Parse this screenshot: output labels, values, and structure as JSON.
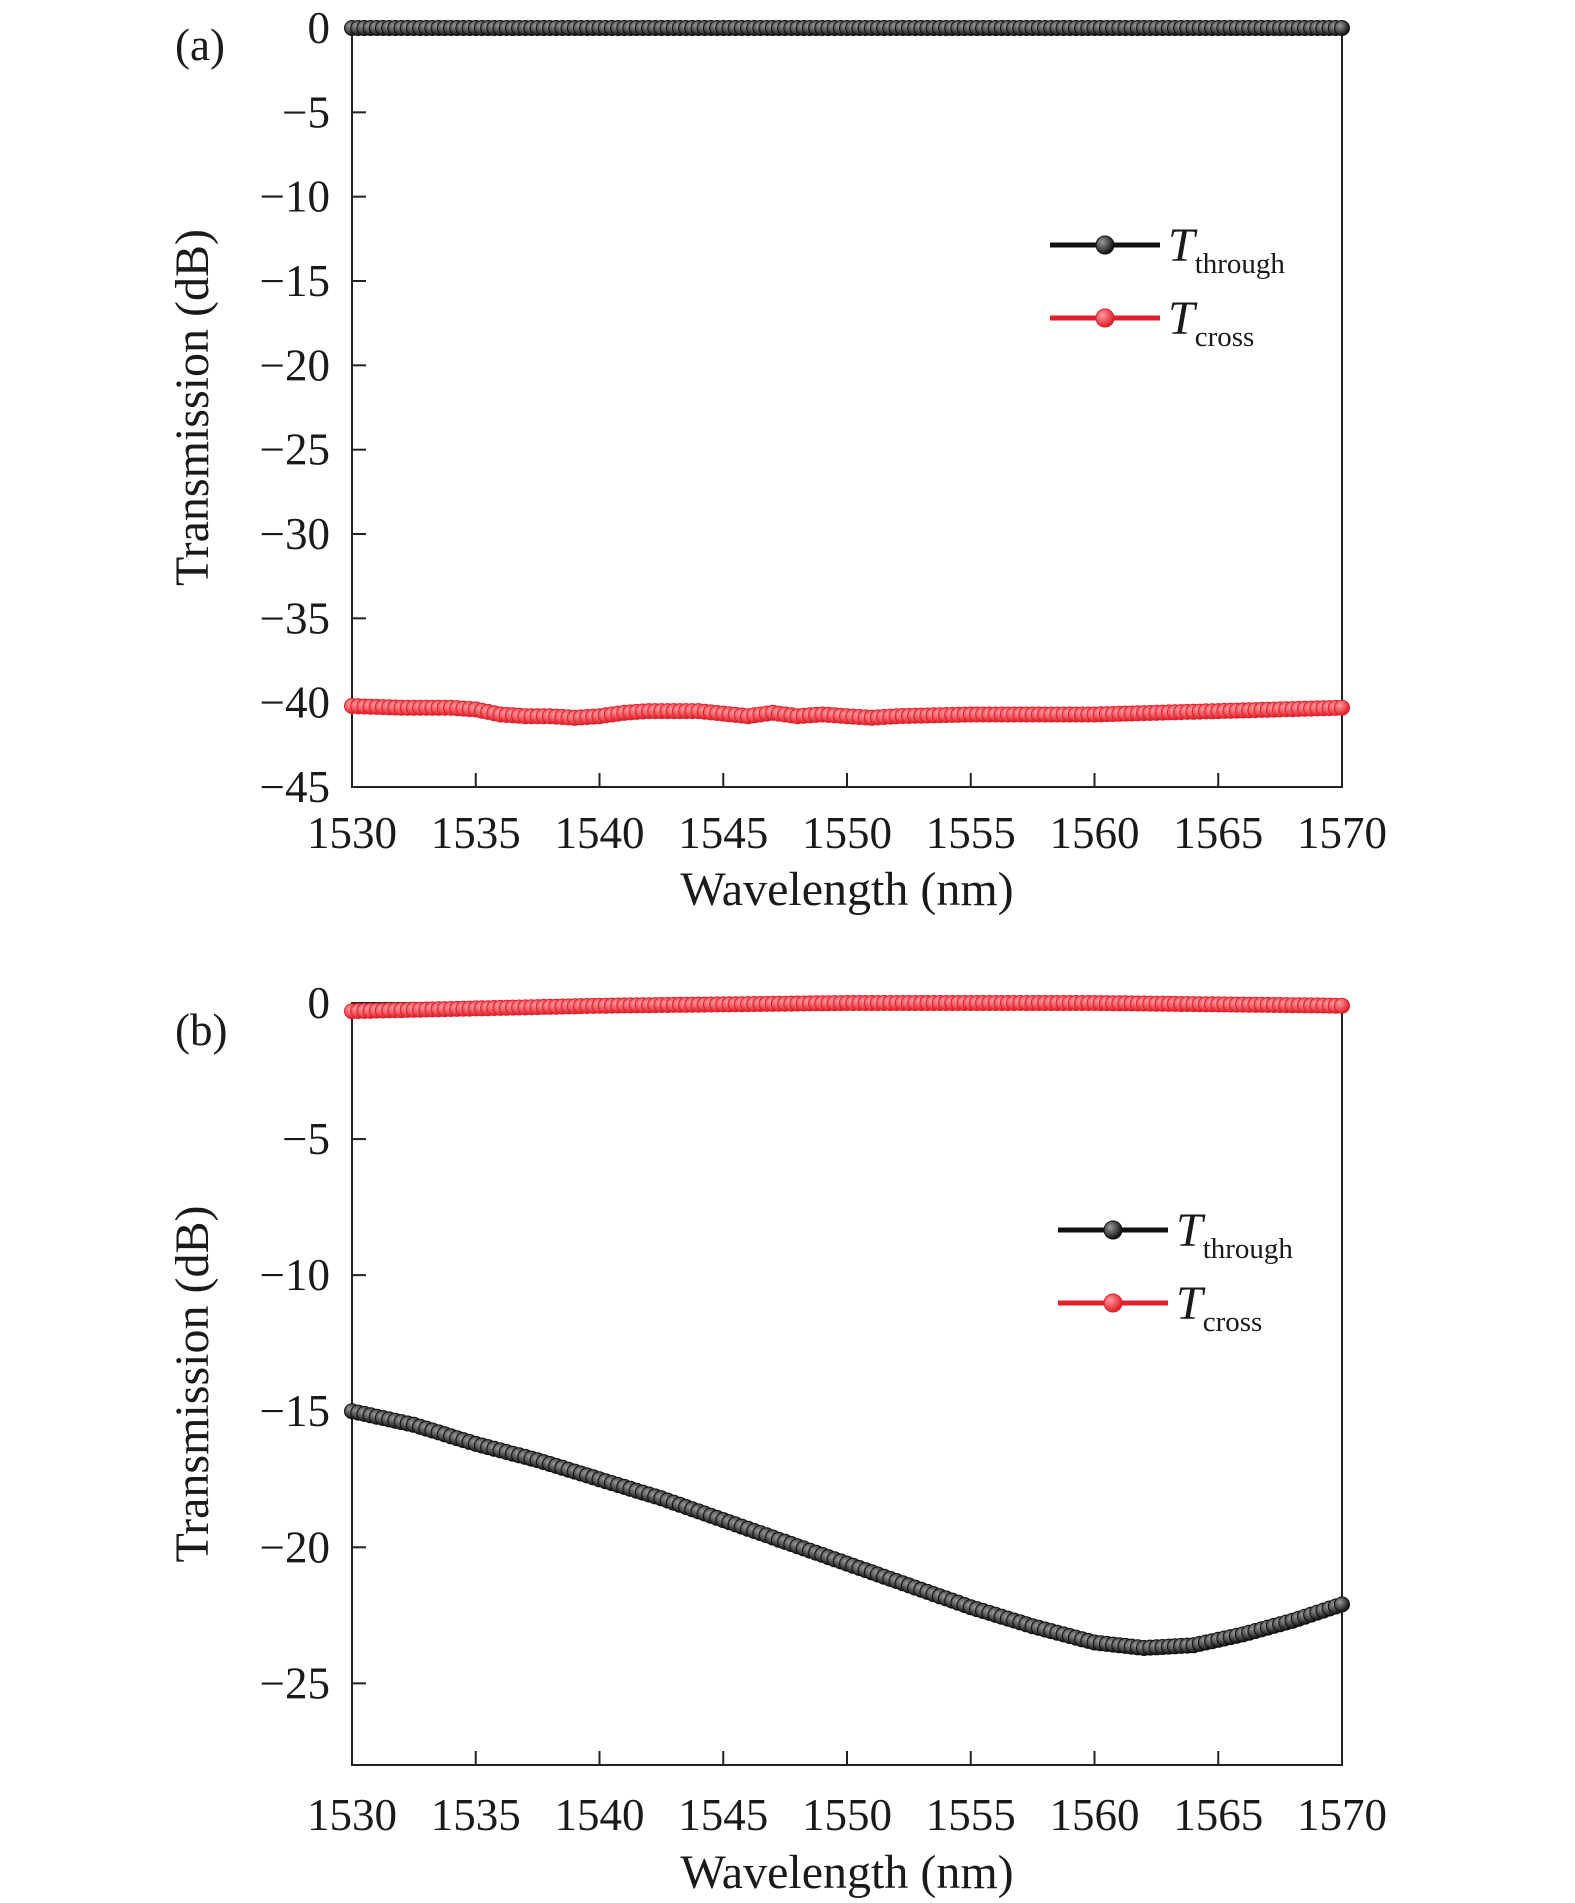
{
  "chart_data": [
    {
      "type": "line",
      "panel_label": "(a)",
      "xlabel": "Wavelength (nm)",
      "ylabel": "Transmission (dB)",
      "xlim": [
        1530,
        1570
      ],
      "ylim": [
        -45,
        0
      ],
      "xticks": [
        1530,
        1535,
        1540,
        1545,
        1550,
        1555,
        1560,
        1565,
        1570
      ],
      "yticks": [
        0,
        -5,
        -10,
        -15,
        -20,
        -25,
        -30,
        -35,
        -40,
        -45
      ],
      "ytick_labels": [
        "0",
        "−5",
        "−10",
        "−15",
        "−20",
        "−25",
        "−30",
        "−35",
        "−40",
        "−45"
      ],
      "legend_position": "upper-right",
      "series": [
        {
          "name": "T_through",
          "name_main": "T",
          "name_sub": "through",
          "color": "#111111",
          "x": [
            1530,
            1535,
            1540,
            1545,
            1550,
            1555,
            1560,
            1565,
            1570
          ],
          "y": [
            0,
            0,
            0,
            0,
            0,
            0,
            0,
            0,
            0
          ]
        },
        {
          "name": "T_cross",
          "name_main": "T",
          "name_sub": "cross",
          "color": "#e0202a",
          "x": [
            1530,
            1532,
            1534,
            1535,
            1536,
            1537,
            1538,
            1539,
            1540,
            1541,
            1542,
            1544,
            1546,
            1547,
            1548,
            1549,
            1550,
            1551,
            1552,
            1555,
            1560,
            1565,
            1570
          ],
          "y": [
            -40.2,
            -40.3,
            -40.3,
            -40.4,
            -40.7,
            -40.8,
            -40.8,
            -40.9,
            -40.8,
            -40.6,
            -40.5,
            -40.5,
            -40.8,
            -40.6,
            -40.8,
            -40.7,
            -40.8,
            -40.9,
            -40.8,
            -40.7,
            -40.7,
            -40.5,
            -40.3
          ]
        }
      ]
    },
    {
      "type": "line",
      "panel_label": "(b)",
      "xlabel": "Wavelength (nm)",
      "ylabel": "Transmission (dB)",
      "xlim": [
        1530,
        1570
      ],
      "ylim": [
        -28,
        0
      ],
      "xticks": [
        1530,
        1535,
        1540,
        1545,
        1550,
        1555,
        1560,
        1565,
        1570
      ],
      "yticks": [
        0,
        -5,
        -10,
        -15,
        -20,
        -25
      ],
      "ytick_labels": [
        "0",
        "−5",
        "−10",
        "−15",
        "−20",
        "−25"
      ],
      "legend_position": "center-right",
      "series": [
        {
          "name": "T_through",
          "name_main": "T",
          "name_sub": "through",
          "color": "#111111",
          "x": [
            1530,
            1532.5,
            1535,
            1537.5,
            1540,
            1542.5,
            1545,
            1547.5,
            1550,
            1552.5,
            1555,
            1557.5,
            1560,
            1562,
            1564,
            1566,
            1568,
            1570
          ],
          "y": [
            -15.0,
            -15.5,
            -16.2,
            -16.8,
            -17.5,
            -18.2,
            -19.0,
            -19.8,
            -20.6,
            -21.4,
            -22.2,
            -22.9,
            -23.5,
            -23.7,
            -23.6,
            -23.2,
            -22.7,
            -22.1
          ]
        },
        {
          "name": "T_cross",
          "name_main": "T",
          "name_sub": "cross",
          "color": "#e0202a",
          "x": [
            1530,
            1535,
            1540,
            1545,
            1550,
            1555,
            1560,
            1565,
            1570
          ],
          "y": [
            -0.3,
            -0.2,
            -0.1,
            -0.05,
            0,
            0,
            0,
            -0.05,
            -0.1
          ]
        }
      ]
    }
  ]
}
